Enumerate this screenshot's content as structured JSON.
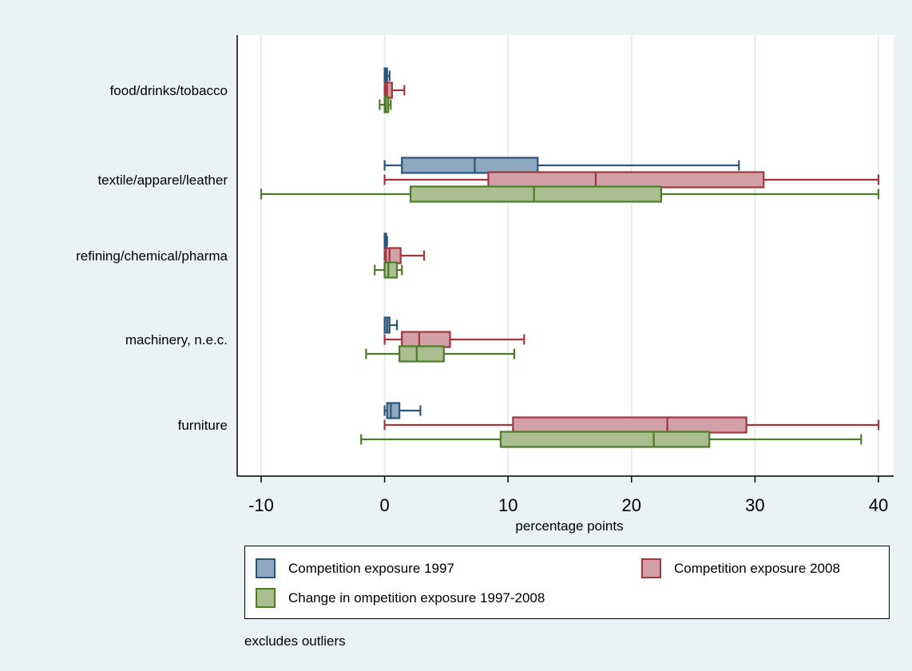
{
  "chart_data": {
    "type": "box",
    "orientation": "horizontal",
    "xlabel": "percentage points",
    "xlim": [
      -10,
      40
    ],
    "xticks": [
      -10,
      0,
      10,
      20,
      30,
      40
    ],
    "grid": true,
    "legend_position": "bottom",
    "note": "excludes outliers",
    "categories": [
      "food/drinks/tobacco",
      "textile/apparel/leather",
      "refining/chemical/pharma",
      "machinery, n.e.c.",
      "furniture"
    ],
    "series": [
      {
        "name": "Competition exposure 1997",
        "fill": "#8ea8bf",
        "stroke": "#2b5578",
        "boxes": [
          {
            "whisker_low": 0,
            "q1": 0,
            "median": 0.1,
            "q3": 0.2,
            "whisker_high": 0.4
          },
          {
            "whisker_low": 0,
            "q1": 1.4,
            "median": 7.3,
            "q3": 12.4,
            "whisker_high": 28.7
          },
          {
            "whisker_low": 0,
            "q1": 0,
            "median": 0.05,
            "q3": 0.1,
            "whisker_high": 0.2
          },
          {
            "whisker_low": 0,
            "q1": 0,
            "median": 0.2,
            "q3": 0.4,
            "whisker_high": 1.0
          },
          {
            "whisker_low": 0,
            "q1": 0.2,
            "median": 0.5,
            "q3": 1.2,
            "whisker_high": 2.9
          }
        ]
      },
      {
        "name": "Competition exposure 2008",
        "fill": "#d3a0a5",
        "stroke": "#a3353f",
        "boxes": [
          {
            "whisker_low": 0,
            "q1": 0.05,
            "median": 0.2,
            "q3": 0.6,
            "whisker_high": 1.6
          },
          {
            "whisker_low": 0,
            "q1": 8.4,
            "median": 17.1,
            "q3": 30.7,
            "whisker_high": 40.0
          },
          {
            "whisker_low": 0,
            "q1": 0.1,
            "median": 0.4,
            "q3": 1.3,
            "whisker_high": 3.2
          },
          {
            "whisker_low": 0,
            "q1": 1.4,
            "median": 2.8,
            "q3": 5.3,
            "whisker_high": 11.3
          },
          {
            "whisker_low": 0,
            "q1": 10.4,
            "median": 22.9,
            "q3": 29.3,
            "whisker_high": 40.0
          }
        ]
      },
      {
        "name": "Change in ompetition exposure 1997-2008",
        "fill": "#a9bf8f",
        "stroke": "#4e7a2a",
        "boxes": [
          {
            "whisker_low": -0.4,
            "q1": 0,
            "median": 0.1,
            "q3": 0.3,
            "whisker_high": 0.5
          },
          {
            "whisker_low": -10.0,
            "q1": 2.1,
            "median": 12.1,
            "q3": 22.4,
            "whisker_high": 40.0
          },
          {
            "whisker_low": -0.8,
            "q1": 0,
            "median": 0.3,
            "q3": 1.0,
            "whisker_high": 1.4
          },
          {
            "whisker_low": -1.5,
            "q1": 1.2,
            "median": 2.6,
            "q3": 4.8,
            "whisker_high": 10.5
          },
          {
            "whisker_low": -1.9,
            "q1": 9.4,
            "median": 21.8,
            "q3": 26.3,
            "whisker_high": 38.6
          }
        ]
      }
    ]
  }
}
